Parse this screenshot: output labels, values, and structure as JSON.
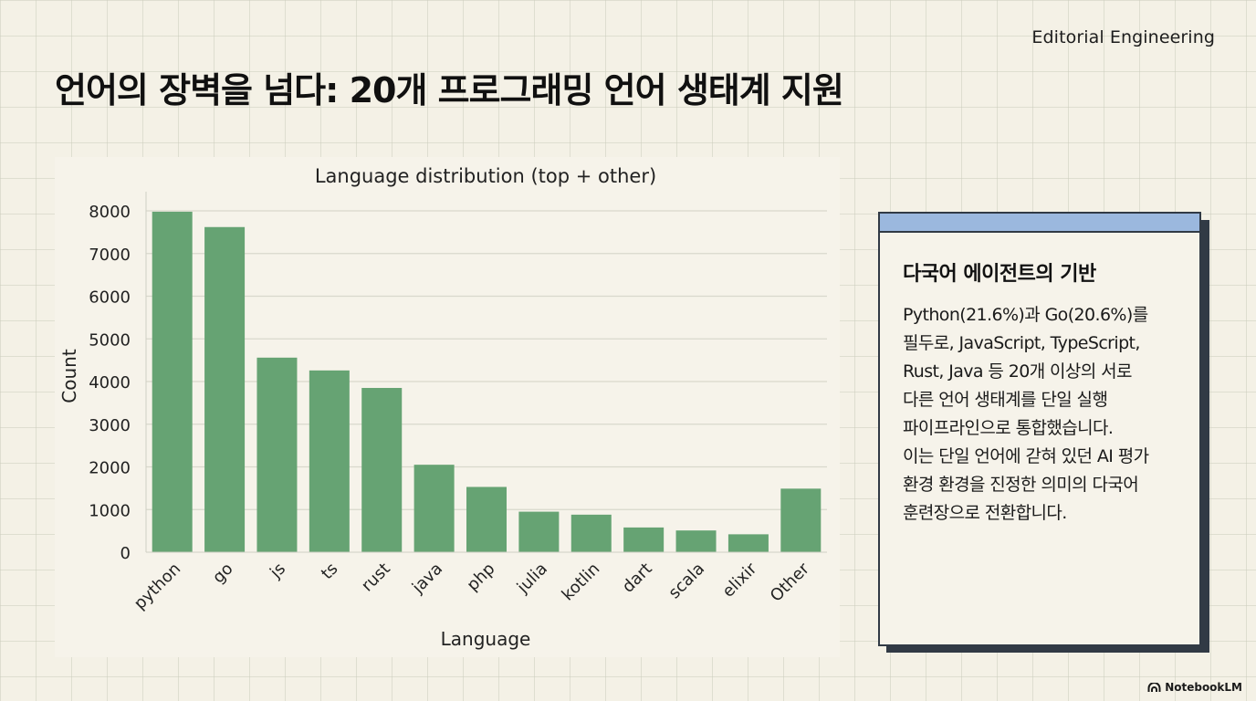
{
  "header": {
    "brand": "Editorial Engineering",
    "title": "언어의 장벽을 넘다: 20개 프로그래밍 언어 생태계 지원"
  },
  "chart_data": {
    "type": "bar",
    "title": "Language distribution (top + other)",
    "xlabel": "Language",
    "ylabel": "Count",
    "categories": [
      "python",
      "go",
      "js",
      "ts",
      "rust",
      "java",
      "php",
      "julia",
      "kotlin",
      "dart",
      "scala",
      "elixir",
      "Other"
    ],
    "values": [
      7980,
      7620,
      4560,
      4260,
      3850,
      2050,
      1530,
      950,
      880,
      580,
      510,
      420,
      1490
    ],
    "ylim": [
      0,
      8000
    ],
    "yticks": [
      0,
      1000,
      2000,
      3000,
      4000,
      5000,
      6000,
      7000,
      8000
    ],
    "bar_color": "#66a373",
    "grid": true,
    "grid_axis": "y"
  },
  "card": {
    "accent_color": "#9bb8de",
    "title": "다국어 에이전트의 기반",
    "body": "Python(21.6%)과 Go(20.6%)를\n필두로, JavaScript, TypeScript,\nRust, Java 등 20개 이상의 서로\n다른 언어 생태계를 단일 실행\n파이프라인으로 통합했습니다.\n이는 단일 언어에 갇혀 있던 AI 평가\n환경 환경을 진정한 의미의 다국어\n훈련장으로 전환합니다."
  },
  "footer": {
    "brand": "NotebookLM",
    "icon": "notebooklm-logo-icon"
  }
}
